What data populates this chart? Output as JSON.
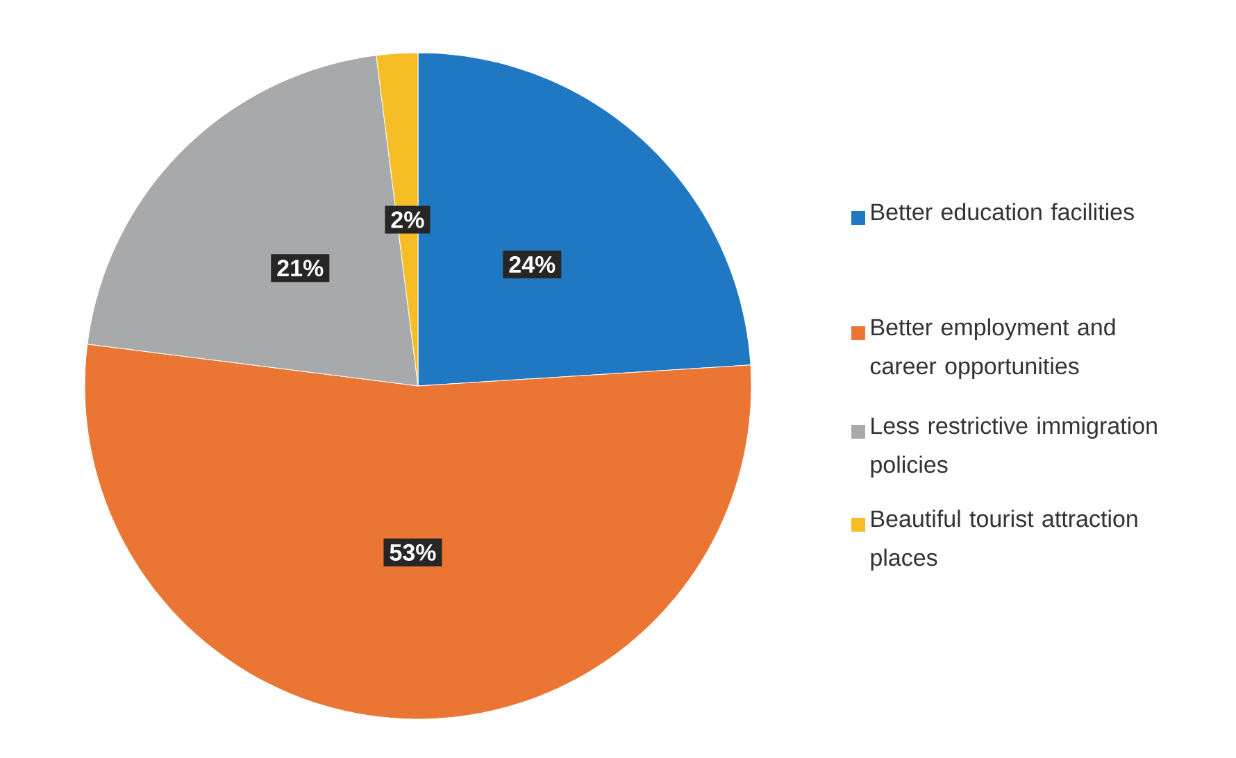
{
  "chart_data": {
    "type": "pie",
    "categories": [
      "Better education facilities",
      "Better employment and career opportunities",
      "Less restrictive immigration policies",
      "Beautiful tourist attraction places"
    ],
    "values": [
      24,
      53,
      21,
      2
    ],
    "value_labels": [
      "24%",
      "53%",
      "21%",
      "2%"
    ],
    "colors": [
      "#1f78c1",
      "#eb7532",
      "#a8a9aa",
      "#f6bd26"
    ],
    "legend": "right"
  }
}
